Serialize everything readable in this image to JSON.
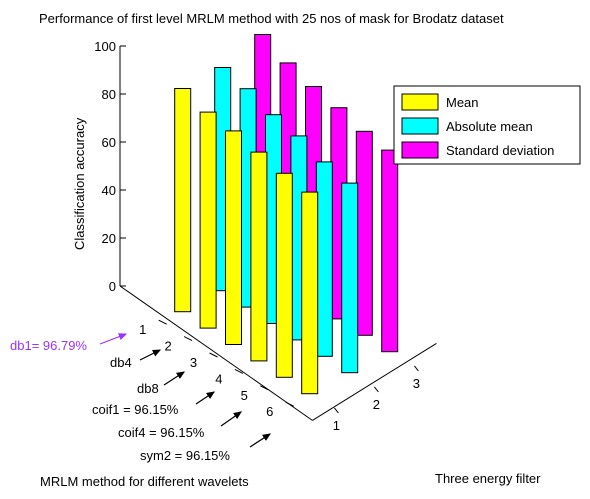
{
  "chart_data": {
    "type": "bar",
    "title": "Performance of first level MRLM method with 25 nos of mask for Brodatz dataset",
    "ylabel": "Classification accuracy",
    "xlabel": "MRLM method for different wavelets",
    "zlabel": "Three energy filter",
    "ylim": [
      0,
      100
    ],
    "yticks": [
      "0",
      "20",
      "40",
      "60",
      "80",
      "100"
    ],
    "categories": [
      "1",
      "2",
      "3",
      "4",
      "5",
      "6"
    ],
    "depth_ticks": [
      "1",
      "2",
      "3"
    ],
    "series": [
      {
        "name": "Mean",
        "color": "#ffff00",
        "values": [
          93,
          90,
          89,
          87,
          85,
          84
        ]
      },
      {
        "name": "Absolute mean",
        "color": "#00ffff",
        "values": [
          93,
          91,
          87,
          85,
          81,
          79
        ]
      },
      {
        "name": "Standard deviation",
        "color": "#ff00ff",
        "values": [
          98,
          93,
          90,
          88,
          85,
          84
        ]
      }
    ],
    "legend_position": "top-right",
    "annotations": [
      {
        "text": "db1= 96.79%",
        "color": "#9933ff"
      },
      {
        "text": "db4",
        "color": "#000000"
      },
      {
        "text": "db8",
        "color": "#000000"
      },
      {
        "text": "coif1 = 96.15%",
        "color": "#000000"
      },
      {
        "text": "coif4 = 96.15%",
        "color": "#000000"
      },
      {
        "text": "sym2 = 96.15%",
        "color": "#000000"
      }
    ]
  }
}
